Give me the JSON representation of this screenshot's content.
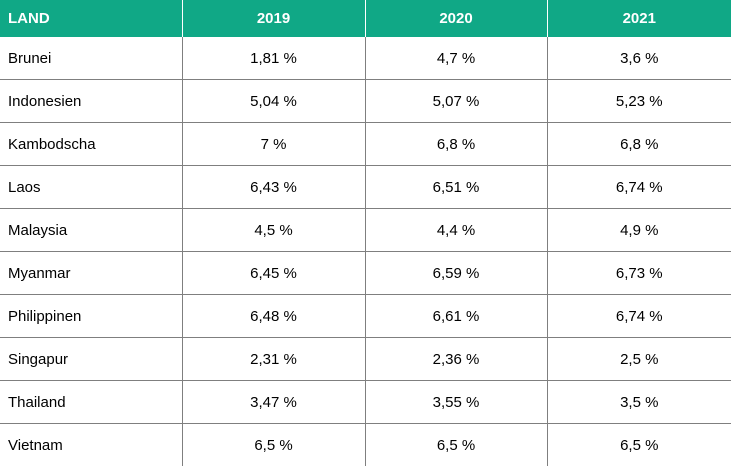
{
  "table": {
    "headers": [
      "LAND",
      "2019",
      "2020",
      "2021"
    ],
    "rows": [
      [
        "Brunei",
        "1,81 %",
        "4,7 %",
        "3,6 %"
      ],
      [
        "Indonesien",
        "5,04 %",
        "5,07 %",
        "5,23 %"
      ],
      [
        "Kambodscha",
        "7 %",
        "6,8 %",
        "6,8 %"
      ],
      [
        "Laos",
        "6,43 %",
        "6,51 %",
        "6,74 %"
      ],
      [
        "Malaysia",
        "4,5 %",
        "4,4 %",
        "4,9 %"
      ],
      [
        "Myanmar",
        "6,45 %",
        "6,59 %",
        "6,73 %"
      ],
      [
        "Philippinen",
        "6,48 %",
        "6,61 %",
        "6,74 %"
      ],
      [
        "Singapur",
        "2,31 %",
        "2,36 %",
        "2,5 %"
      ],
      [
        "Thailand",
        "3,47 %",
        "3,55 %",
        "3,5 %"
      ],
      [
        "Vietnam",
        "6,5 %",
        "6,5 %",
        "6,5 %"
      ]
    ]
  },
  "colors": {
    "header_bg": "#10a886",
    "header_text": "#ffffff",
    "grid": "#7f7f7f"
  }
}
